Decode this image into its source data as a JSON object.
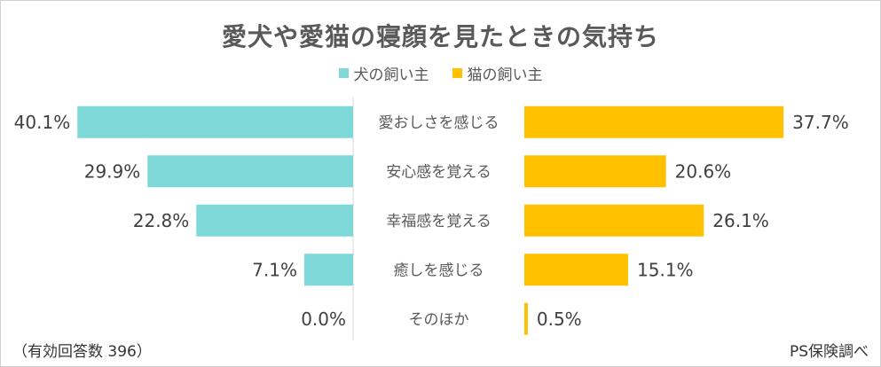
{
  "chart_data": {
    "type": "bar",
    "orientation": "horizontal-butterfly",
    "title": "愛犬や愛猫の寝顔を見たときの気持ち",
    "categories": [
      "愛おしさを感じる",
      "安心感を覚える",
      "幸福感を覚える",
      "癒しを感じる",
      "そのほか"
    ],
    "series": [
      {
        "name": "犬の飼い主",
        "color": "#7fd8d8",
        "side": "left",
        "values": [
          40.1,
          29.9,
          22.8,
          7.1,
          0.0
        ],
        "labels": [
          "40.1%",
          "29.9%",
          "22.8%",
          "7.1%",
          "0.0%"
        ]
      },
      {
        "name": "猫の飼い主",
        "color": "#ffc000",
        "side": "right",
        "values": [
          37.7,
          20.6,
          26.1,
          15.1,
          0.5
        ],
        "labels": [
          "37.7%",
          "20.6%",
          "26.1%",
          "15.1%",
          "0.5%"
        ]
      }
    ],
    "unit": "%",
    "footnote": "（有効回答数 396）",
    "source": "PS保険調べ"
  }
}
